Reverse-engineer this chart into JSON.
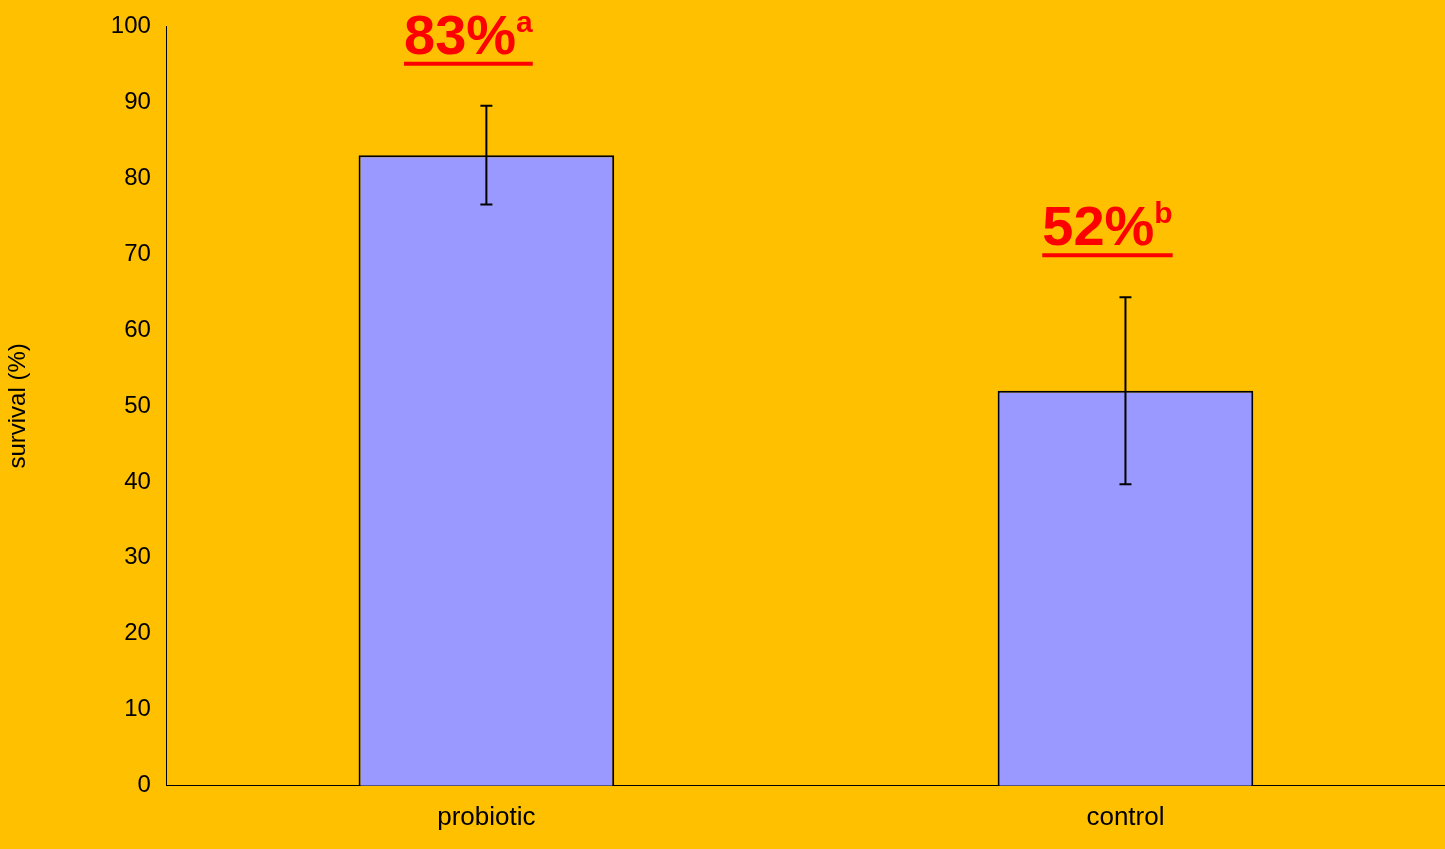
{
  "chart_data": {
    "type": "bar",
    "ylabel": "survival (%)",
    "categories": [
      "probiotic",
      "control"
    ],
    "values": [
      83,
      52
    ],
    "errors": [
      6.5,
      12.3
    ],
    "value_labels": [
      "83%$^{a}$",
      "52%$^{b}$"
    ],
    "color": "#9999ff",
    "ylim": [
      0,
      100
    ],
    "yticks": [
      0,
      10,
      20,
      30,
      40,
      50,
      60,
      70,
      80,
      90,
      100
    ],
    "grid": false,
    "legend": false
  }
}
